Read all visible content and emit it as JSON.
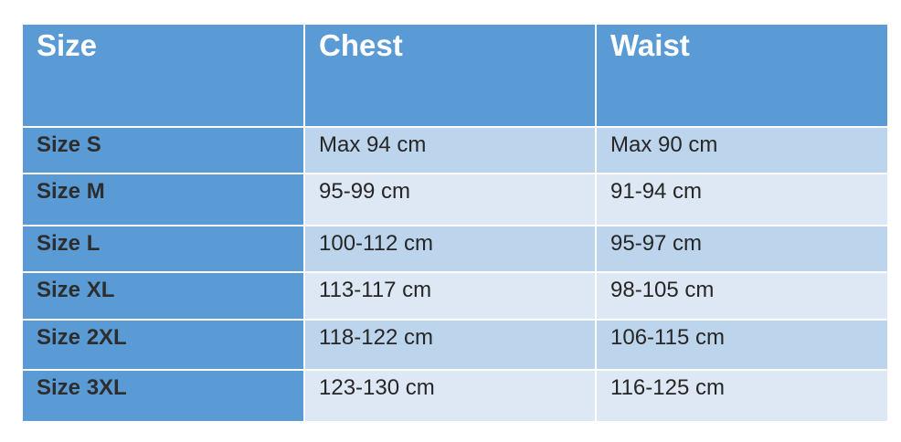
{
  "table": {
    "headers": [
      "Size",
      "Chest",
      "Waist"
    ],
    "rows": [
      [
        "Size S",
        "Max 94 cm",
        "Max 90 cm"
      ],
      [
        "Size M",
        "95-99 cm",
        "91-94 cm"
      ],
      [
        "Size L",
        "100-112 cm",
        "95-97 cm"
      ],
      [
        "Size XL",
        "113-117 cm",
        "98-105 cm"
      ],
      [
        "Size 2XL",
        "118-122 cm",
        "106-115 cm"
      ],
      [
        "Size 3XL",
        "123-130 cm",
        "116-125 cm"
      ]
    ]
  },
  "colors": {
    "header": "#5B9BD5",
    "row_dark": "#BDD5EC",
    "row_light": "#DDE8F4"
  }
}
